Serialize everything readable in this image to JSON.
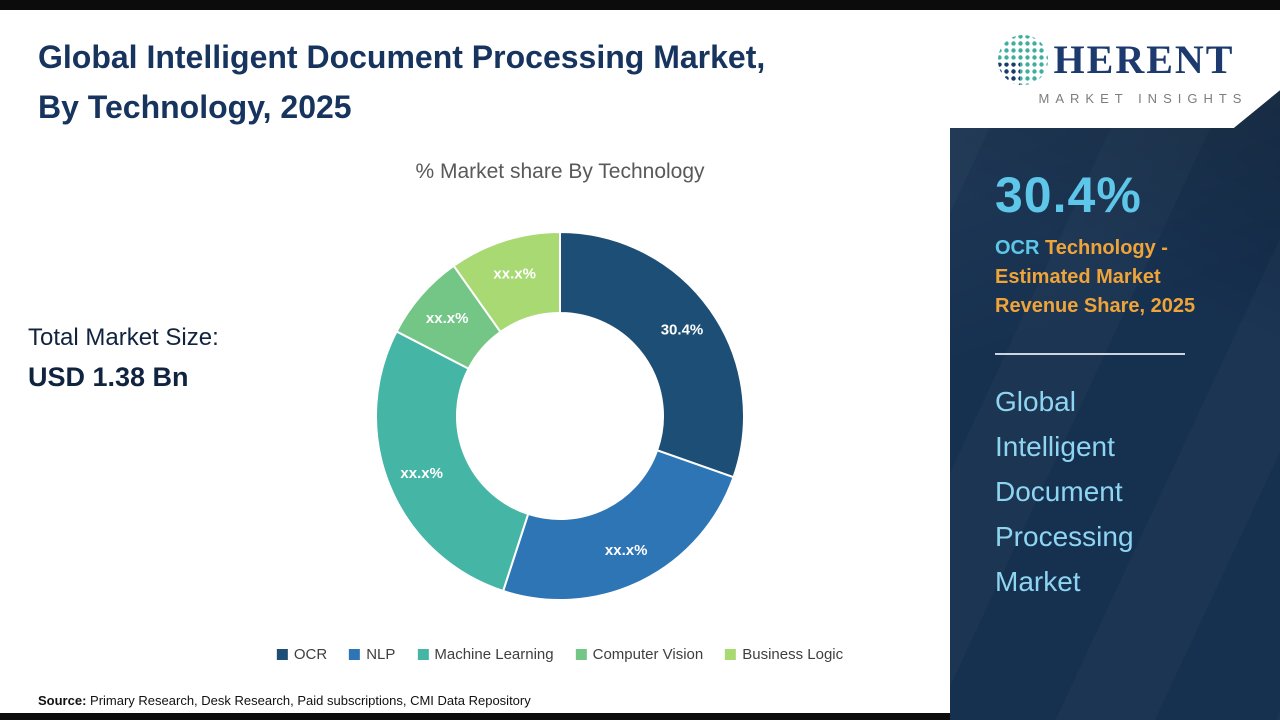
{
  "page": {
    "title_line1": "Global Intelligent Document Processing Market,",
    "title_line2": "By Technology, 2025",
    "chart_subtitle": "% Market share By Technology",
    "total_market_label": "Total Market Size:",
    "total_market_value": "USD 1.38 Bn",
    "source_label": "Source:",
    "source_text": "Primary Research, Desk Research, Paid subscriptions, CMI Data Repository"
  },
  "chart_data": {
    "type": "pie",
    "subtype": "donut",
    "title": "% Market share By Technology",
    "legend_position": "bottom",
    "start_angle_deg": 0,
    "direction": "clockwise",
    "segments": [
      {
        "name": "OCR",
        "label": "30.4%",
        "value": 30.4,
        "color": "#1d4f76"
      },
      {
        "name": "NLP",
        "label": "xx.x%",
        "value": 24.6,
        "color": "#2e75b6"
      },
      {
        "name": "Machine Learning",
        "label": "xx.x%",
        "value": 27.6,
        "color": "#45b5a6"
      },
      {
        "name": "Computer Vision",
        "label": "xx.x%",
        "value": 7.6,
        "color": "#73c686"
      },
      {
        "name": "Business Logic",
        "label": "xx.x%",
        "value": 9.8,
        "color": "#a8d973"
      }
    ]
  },
  "sidebar": {
    "logo_word": "HERENT",
    "logo_subtitle": "MARKET INSIGHTS",
    "highlight_value": "30.4%",
    "highlight_term": "OCR",
    "highlight_rest": " Technology -",
    "highlight_line2": "Estimated Market",
    "highlight_line3": "Revenue Share, 2025",
    "market_name_lines": [
      "Global",
      "Intelligent",
      "Document",
      "Processing",
      "Market"
    ],
    "colors": {
      "accent_blue": "#5ec7e9",
      "accent_amber": "#efa43a",
      "panel_bg": "#16304f"
    }
  }
}
